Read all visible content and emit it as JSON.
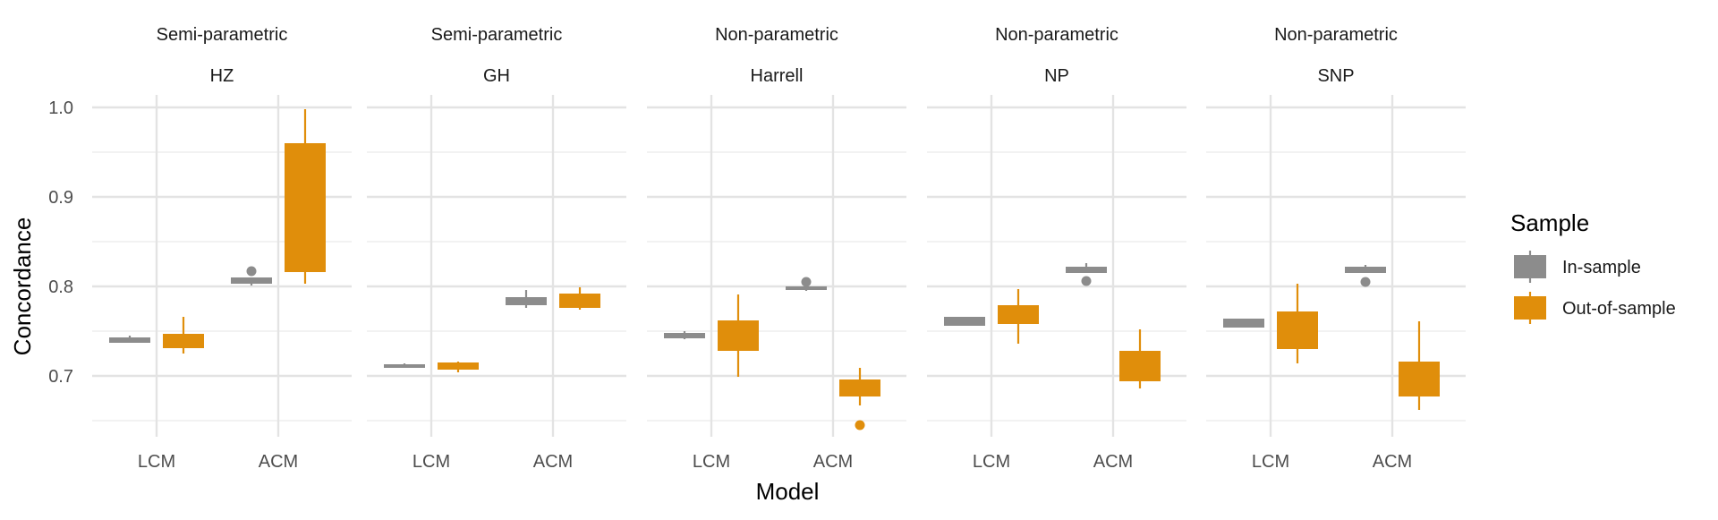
{
  "chart_data": {
    "type": "boxplot",
    "ylabel": "Concordance",
    "xlabel": "Model",
    "ylim": [
      0.635,
      1.01
    ],
    "y_ticks": [
      0.7,
      0.8,
      0.9,
      1.0
    ],
    "y_tick_labels": [
      "0.7",
      "0.8",
      "0.9",
      "1.0"
    ],
    "categories": [
      "LCM",
      "ACM"
    ],
    "grid": true,
    "legend": {
      "title": "Sample",
      "position": "right",
      "items": [
        {
          "label": "In-sample",
          "color": "#8c8c8c"
        },
        {
          "label": "Out-of-sample",
          "color": "#e08e0b"
        }
      ]
    },
    "panels": [
      {
        "family": "Semi-parametric",
        "metric": "HZ",
        "boxes": [
          {
            "model": "LCM",
            "sample": "In-sample",
            "min": 0.737,
            "q1": 0.737,
            "median": 0.74,
            "q3": 0.743,
            "max": 0.745,
            "outliers": []
          },
          {
            "model": "LCM",
            "sample": "Out-of-sample",
            "min": 0.725,
            "q1": 0.731,
            "median": 0.745,
            "q3": 0.747,
            "max": 0.766,
            "outliers": []
          },
          {
            "model": "ACM",
            "sample": "In-sample",
            "min": 0.801,
            "q1": 0.803,
            "median": 0.806,
            "q3": 0.81,
            "max": 0.81,
            "outliers": [
              0.817
            ]
          },
          {
            "model": "ACM",
            "sample": "Out-of-sample",
            "min": 0.803,
            "q1": 0.816,
            "median": 0.958,
            "q3": 0.96,
            "max": 0.998,
            "outliers": []
          }
        ]
      },
      {
        "family": "Semi-parametric",
        "metric": "GH",
        "boxes": [
          {
            "model": "LCM",
            "sample": "In-sample",
            "min": 0.709,
            "q1": 0.709,
            "median": 0.711,
            "q3": 0.713,
            "max": 0.714,
            "outliers": []
          },
          {
            "model": "LCM",
            "sample": "Out-of-sample",
            "min": 0.704,
            "q1": 0.707,
            "median": 0.711,
            "q3": 0.715,
            "max": 0.716,
            "outliers": []
          },
          {
            "model": "ACM",
            "sample": "In-sample",
            "min": 0.776,
            "q1": 0.779,
            "median": 0.783,
            "q3": 0.788,
            "max": 0.796,
            "outliers": []
          },
          {
            "model": "ACM",
            "sample": "Out-of-sample",
            "min": 0.774,
            "q1": 0.776,
            "median": 0.785,
            "q3": 0.792,
            "max": 0.799,
            "outliers": []
          }
        ]
      },
      {
        "family": "Non-parametric",
        "metric": "Harrell",
        "boxes": [
          {
            "model": "LCM",
            "sample": "In-sample",
            "min": 0.741,
            "q1": 0.742,
            "median": 0.745,
            "q3": 0.748,
            "max": 0.75,
            "outliers": []
          },
          {
            "model": "LCM",
            "sample": "Out-of-sample",
            "min": 0.699,
            "q1": 0.728,
            "median": 0.757,
            "q3": 0.762,
            "max": 0.791,
            "outliers": []
          },
          {
            "model": "ACM",
            "sample": "In-sample",
            "min": 0.795,
            "q1": 0.796,
            "median": 0.798,
            "q3": 0.8,
            "max": 0.8,
            "outliers": [
              0.805
            ]
          },
          {
            "model": "ACM",
            "sample": "Out-of-sample",
            "min": 0.667,
            "q1": 0.677,
            "median": 0.679,
            "q3": 0.696,
            "max": 0.709,
            "outliers": [
              0.645
            ]
          }
        ]
      },
      {
        "family": "Non-parametric",
        "metric": "NP",
        "boxes": [
          {
            "model": "LCM",
            "sample": "In-sample",
            "min": 0.756,
            "q1": 0.756,
            "median": 0.76,
            "q3": 0.766,
            "max": 0.766,
            "outliers": []
          },
          {
            "model": "LCM",
            "sample": "Out-of-sample",
            "min": 0.736,
            "q1": 0.758,
            "median": 0.765,
            "q3": 0.779,
            "max": 0.797,
            "outliers": []
          },
          {
            "model": "ACM",
            "sample": "In-sample",
            "min": 0.815,
            "q1": 0.815,
            "median": 0.817,
            "q3": 0.822,
            "max": 0.826,
            "outliers": [
              0.806
            ]
          },
          {
            "model": "ACM",
            "sample": "Out-of-sample",
            "min": 0.686,
            "q1": 0.694,
            "median": 0.711,
            "q3": 0.728,
            "max": 0.752,
            "outliers": []
          }
        ]
      },
      {
        "family": "Non-parametric",
        "metric": "SNP",
        "boxes": [
          {
            "model": "LCM",
            "sample": "In-sample",
            "min": 0.754,
            "q1": 0.754,
            "median": 0.76,
            "q3": 0.764,
            "max": 0.764,
            "outliers": []
          },
          {
            "model": "LCM",
            "sample": "Out-of-sample",
            "min": 0.714,
            "q1": 0.73,
            "median": 0.757,
            "q3": 0.772,
            "max": 0.803,
            "outliers": []
          },
          {
            "model": "ACM",
            "sample": "In-sample",
            "min": 0.815,
            "q1": 0.815,
            "median": 0.818,
            "q3": 0.822,
            "max": 0.824,
            "outliers": [
              0.805
            ]
          },
          {
            "model": "ACM",
            "sample": "Out-of-sample",
            "min": 0.662,
            "q1": 0.677,
            "median": 0.69,
            "q3": 0.716,
            "max": 0.761,
            "outliers": []
          }
        ]
      }
    ]
  }
}
